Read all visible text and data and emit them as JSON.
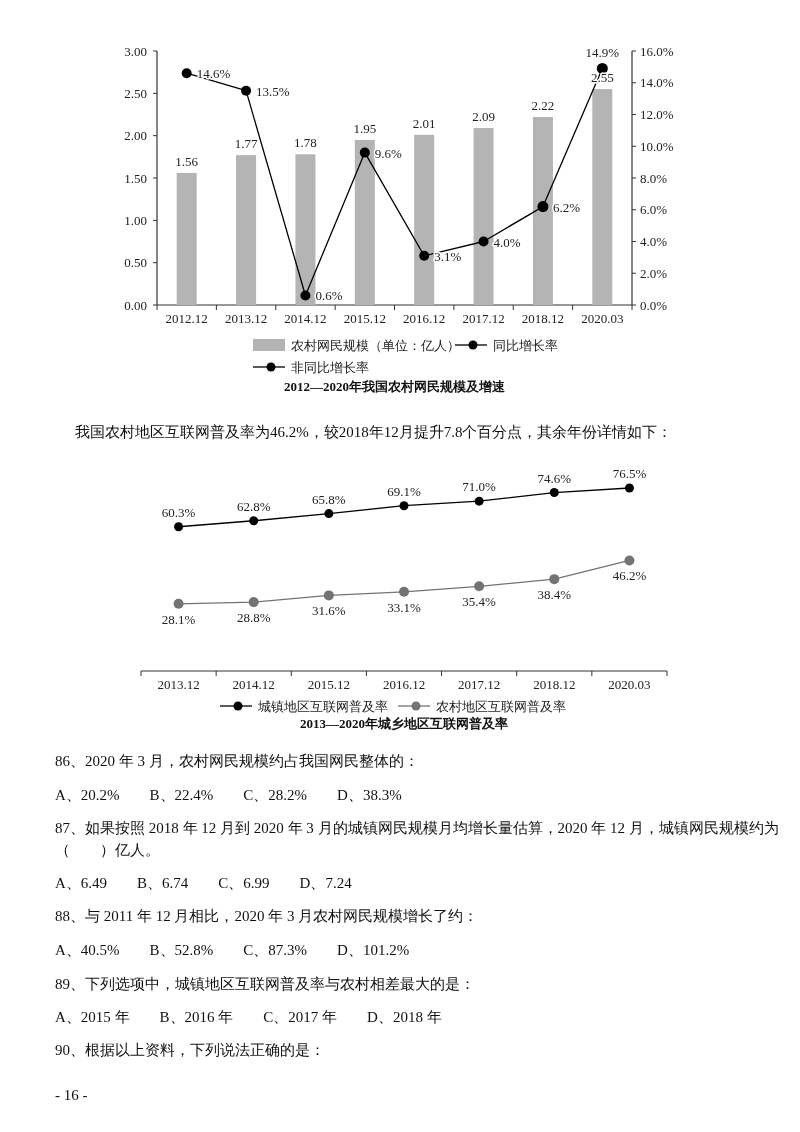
{
  "chart_data": [
    {
      "type": "bar",
      "title": "2012—2020年我国农村网民规模及增速",
      "categories": [
        "2012.12",
        "2013.12",
        "2014.12",
        "2015.12",
        "2016.12",
        "2017.12",
        "2018.12",
        "2020.03"
      ],
      "series": [
        {
          "name": "农村网民规模（单位：亿人）",
          "type": "bar",
          "color": "#b4b4b4",
          "values": [
            1.56,
            1.77,
            1.78,
            1.95,
            2.01,
            2.09,
            2.22,
            2.55
          ],
          "value_labels": [
            "1.56",
            "1.77",
            "1.78",
            "1.95",
            "2.01",
            "2.09",
            "2.22",
            "2.55"
          ]
        },
        {
          "name": "同比增长率",
          "type": "line",
          "axis": "y2",
          "color": "#000000",
          "values": [
            14.6,
            13.5,
            0.6,
            9.6,
            3.1,
            4.0,
            6.2,
            null
          ],
          "value_labels": [
            "14.6%",
            "13.5%",
            "0.6%",
            "9.6%",
            "3.1%",
            "4.0%",
            "6.2%",
            null
          ]
        },
        {
          "name": "非同比增长率",
          "type": "line",
          "axis": "y2",
          "color": "#000000",
          "values": [
            null,
            null,
            null,
            null,
            null,
            null,
            6.2,
            14.9
          ],
          "value_labels": [
            null,
            null,
            null,
            null,
            null,
            null,
            null,
            "14.9%"
          ]
        }
      ],
      "ylim": [
        0,
        3
      ],
      "yticks": [
        {
          "value": 0,
          "label": "0.00"
        },
        {
          "value": 0.5,
          "label": "0.50"
        },
        {
          "value": 1,
          "label": "1.00"
        },
        {
          "value": 1.5,
          "label": "1.50"
        },
        {
          "value": 2,
          "label": "2.00"
        },
        {
          "value": 2.5,
          "label": "2.50"
        },
        {
          "value": 3,
          "label": "3.00"
        }
      ],
      "y2lim": [
        0,
        16
      ],
      "y2ticks": [
        {
          "value": 0,
          "label": "0.0%"
        },
        {
          "value": 2,
          "label": "2.0%"
        },
        {
          "value": 4,
          "label": "4.0%"
        },
        {
          "value": 6,
          "label": "6.0%"
        },
        {
          "value": 8,
          "label": "8.0%"
        },
        {
          "value": 10,
          "label": "10.0%"
        },
        {
          "value": 12,
          "label": "12.0%"
        },
        {
          "value": 14,
          "label": "14.0%"
        },
        {
          "value": 16,
          "label": "16.0%"
        }
      ],
      "marker": "circle",
      "legend": "bottom",
      "grid": false
    },
    {
      "type": "line",
      "title": "2013—2020年城乡地区互联网普及率",
      "categories": [
        "2013.12",
        "2014.12",
        "2015.12",
        "2016.12",
        "2017.12",
        "2018.12",
        "2020.03"
      ],
      "series": [
        {
          "name": "城镇地区互联网普及率",
          "color": "#000000",
          "values": [
            60.3,
            62.8,
            65.8,
            69.1,
            71.0,
            74.6,
            76.5
          ],
          "value_labels": [
            "60.3%",
            "62.8%",
            "65.8%",
            "69.1%",
            "71.0%",
            "74.6%",
            "76.5%"
          ]
        },
        {
          "name": "农村地区互联网普及率",
          "color": "#737373",
          "values": [
            28.1,
            28.8,
            31.6,
            33.1,
            35.4,
            38.4,
            46.2
          ],
          "value_labels": [
            "28.1%",
            "28.8%",
            "31.6%",
            "33.1%",
            "35.4%",
            "38.4%",
            "46.2%"
          ]
        }
      ],
      "tick_labels": "x",
      "marker": "circle",
      "legend": "bottom",
      "grid": false,
      "annotations": [
        "我国农村地区互联网普及率为46.2%，较2018年12月提升7.8个百分点，其余年份详情如下：",
        "86、2020 年 3 月，农村网民规模约占我国网民整体的：",
        "A、20.2%　　B、22.4%　　C、28.2%　　D、38.3%",
        "87、如果按照 2018 年 12 月到 2020 年 3 月的城镇网民规模月均增长量估算，2020 年 12 月，城镇网民规模约为（　　）亿人。",
        "A、6.49　　B、6.74　　C、6.99　　D、7.24",
        "88、与 2011 年 12 月相比，2020 年 3 月农村网民规模增长了约：",
        "A、40.5%　　B、52.8%　　C、87.3%　　D、101.2%",
        "89、下列选项中，城镇地区互联网普及率与农村相差最大的是：",
        "A、2015 年　　B、2016 年　　C、2017 年　　D、2018 年",
        "90、根据以上资料，下列说法正确的是：",
        "- 16 -"
      ]
    }
  ]
}
